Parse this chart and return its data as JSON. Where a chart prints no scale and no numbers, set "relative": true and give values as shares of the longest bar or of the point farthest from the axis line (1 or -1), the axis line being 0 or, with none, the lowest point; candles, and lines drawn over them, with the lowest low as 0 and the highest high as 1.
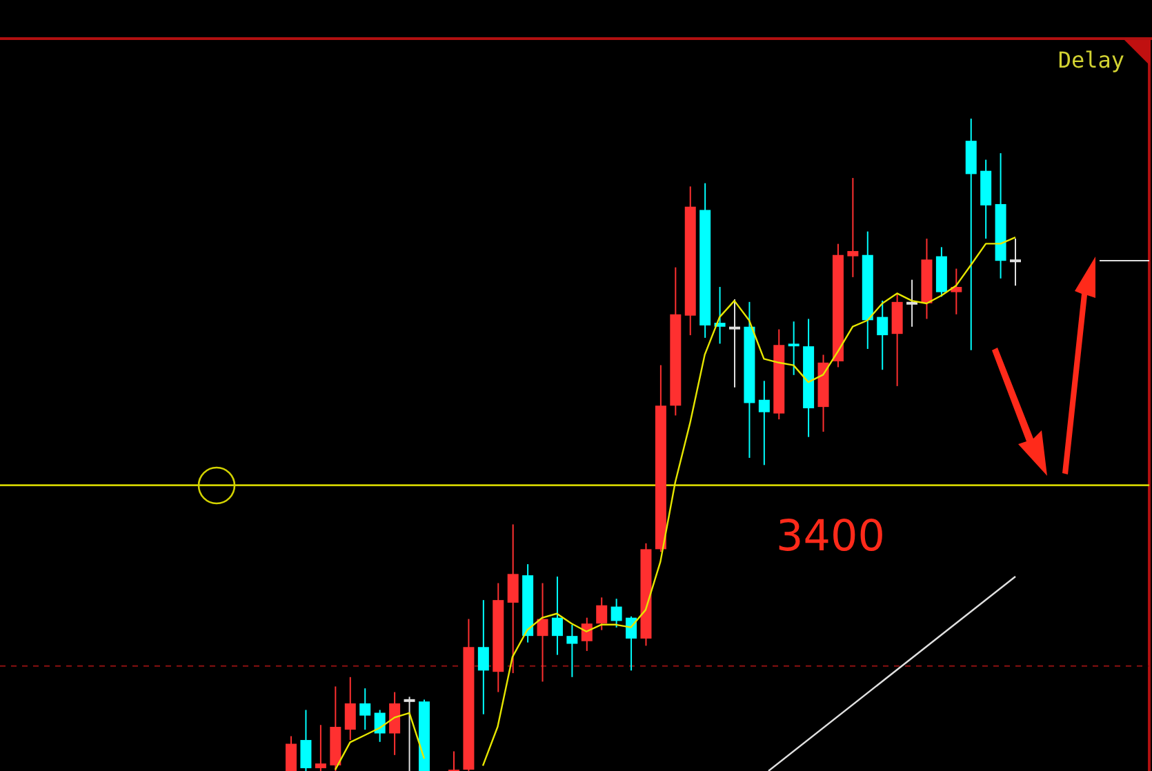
{
  "chart_data": [
    {
      "type": "candlestick",
      "relative": true,
      "categories": [
        null,
        null,
        null,
        null,
        null,
        null,
        null,
        null,
        null,
        null
      ],
      "ohlc": [
        [
          0,
          0.37,
          0,
          0.29
        ],
        [
          0.33,
          0.65,
          0,
          0.03
        ],
        [
          0.03,
          0.49,
          0,
          0.08
        ],
        [
          0.06,
          0.9,
          0,
          0.47
        ],
        [
          0.44,
          1,
          0.33,
          0.72
        ],
        [
          0.72,
          0.88,
          0.44,
          0.59
        ],
        [
          0.62,
          0.65,
          0.31,
          0.4
        ],
        [
          0.4,
          0.84,
          0.17,
          0.72
        ],
        [
          0.75,
          0.79,
          0,
          0.75
        ],
        [
          0.74,
          0.76,
          0,
          0
        ]
      ]
    },
    {
      "type": "candlestick",
      "relative": true,
      "categories": [
        null,
        null,
        null,
        null,
        null,
        null,
        null,
        null,
        null,
        null,
        null,
        null,
        null,
        null,
        null,
        null,
        null,
        null,
        null,
        null,
        null,
        null,
        null,
        null,
        null,
        null,
        null,
        null,
        null,
        null,
        null,
        null,
        null,
        null,
        null,
        null,
        null,
        null,
        null
      ],
      "ohlc": [
        [
          0,
          0.03,
          0,
          0.002
        ],
        [
          0.002,
          0.233,
          0,
          0.19
        ],
        [
          0.19,
          0.262,
          0.087,
          0.154
        ],
        [
          0.152,
          0.288,
          0.121,
          0.262
        ],
        [
          0.258,
          0.378,
          0.15,
          0.302
        ],
        [
          0.3,
          0.317,
          0.197,
          0.207
        ],
        [
          0.207,
          0.288,
          0.137,
          0.233
        ],
        [
          0.235,
          0.298,
          0.178,
          0.207
        ],
        [
          0.207,
          0.224,
          0.144,
          0.195
        ],
        [
          0.199,
          0.235,
          0.184,
          0.226
        ],
        [
          0.226,
          0.266,
          0.216,
          0.254
        ],
        [
          0.252,
          0.264,
          0.22,
          0.23
        ],
        [
          0.235,
          0.237,
          0.154,
          0.203
        ],
        [
          0.203,
          0.349,
          0.192,
          0.34
        ],
        [
          0.34,
          0.622,
          0.336,
          0.56
        ],
        [
          0.56,
          0.772,
          0.545,
          0.7
        ],
        [
          0.698,
          0.896,
          0.668,
          0.865
        ],
        [
          0.86,
          0.901,
          0.664,
          0.683
        ],
        [
          0.687,
          0.742,
          0.655,
          0.681
        ],
        [
          0.679,
          0.723,
          0.588,
          0.679
        ],
        [
          0.681,
          0.719,
          0.48,
          0.564
        ],
        [
          0.569,
          0.598,
          0.469,
          0.55
        ],
        [
          0.548,
          0.677,
          0.539,
          0.653
        ],
        [
          0.655,
          0.689,
          0.607,
          0.651
        ],
        [
          0.651,
          0.693,
          0.512,
          0.556
        ],
        [
          0.558,
          0.638,
          0.52,
          0.626
        ],
        [
          0.628,
          0.808,
          0.619,
          0.791
        ],
        [
          0.789,
          0.909,
          0.757,
          0.797
        ],
        [
          0.791,
          0.827,
          0.647,
          0.691
        ],
        [
          0.696,
          0.721,
          0.615,
          0.668
        ],
        [
          0.67,
          0.732,
          0.59,
          0.719
        ],
        [
          0.717,
          0.753,
          0.681,
          0.717
        ],
        [
          0.717,
          0.816,
          0.693,
          0.784
        ],
        [
          0.789,
          0.803,
          0.727,
          0.734
        ],
        [
          0.734,
          0.77,
          0.7,
          0.742
        ],
        [
          0.966,
          1,
          0.645,
          0.915
        ],
        [
          0.92,
          0.937,
          0.816,
          0.867
        ],
        [
          0.869,
          0.947,
          0.755,
          0.782
        ],
        [
          0.782,
          0.816,
          0.744,
          0.782
        ]
      ],
      "ref_lines": [
        {
          "axis": "y",
          "value": 0.438,
          "color": "#d2d200",
          "line_style": "solid"
        },
        {
          "axis": "y",
          "value": 0.161,
          "color": "#8b1010",
          "line_style": "dashed"
        }
      ],
      "annotations": [
        "Delay",
        "3400"
      ]
    },
    {
      "type": "line",
      "relative": true,
      "categories": [
        null,
        null,
        null,
        null,
        null,
        null,
        null,
        null,
        null,
        null,
        null,
        null,
        null,
        null,
        null,
        null,
        null,
        null,
        null,
        null,
        null,
        null,
        null,
        null,
        null,
        null,
        null,
        null,
        null,
        null,
        null,
        null,
        null,
        null,
        null,
        null,
        null
      ],
      "series": [
        {
          "color": "#e6e600",
          "values": [
            0,
            0.074,
            0.206,
            0.257,
            0.28,
            0.288,
            0.269,
            0.254,
            0.267,
            0.267,
            0.262,
            0.295,
            0.386,
            0.536,
            0.648,
            0.778,
            0.849,
            0.88,
            0.843,
            0.77,
            0.763,
            0.758,
            0.726,
            0.74,
            0.784,
            0.831,
            0.843,
            0.875,
            0.894,
            0.88,
            0.875,
            0.89,
            0.909,
            0.948,
            0.988,
            0.988,
            1
          ]
        }
      ]
    },
    {
      "type": "line",
      "relative": true,
      "categories": [
        null,
        null,
        null,
        null,
        null,
        null,
        null
      ],
      "series": [
        {
          "color": "#e6e600",
          "values": [
            0,
            0.483,
            0.609,
            0.736,
            0.92,
            1,
            0.195
          ]
        }
      ]
    },
    {
      "type": "line",
      "relative": true,
      "categories": [
        null,
        null
      ],
      "series": [
        {
          "color": "#e0e0e0",
          "values": [
            0,
            1
          ]
        }
      ]
    }
  ]
}
